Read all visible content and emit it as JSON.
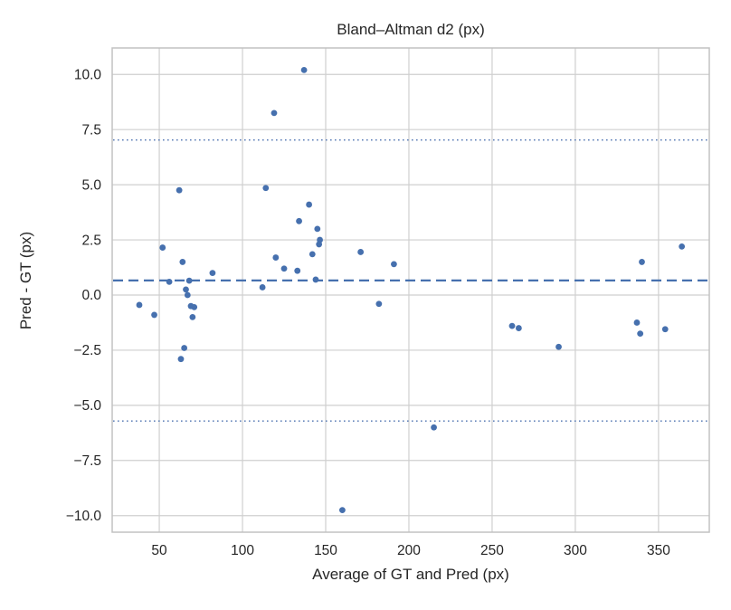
{
  "chart_data": {
    "type": "scatter",
    "title": "Bland–Altman d2 (px)",
    "xlabel": "Average of GT and Pred (px)",
    "ylabel": "Pred - GT (px)",
    "xlim": [
      21.7,
      380.5
    ],
    "ylim": [
      -10.75,
      11.2
    ],
    "grid": true,
    "legend": false,
    "x_ticks": [
      50,
      100,
      150,
      200,
      250,
      300,
      350
    ],
    "x_tick_labels": [
      "50",
      "100",
      "150",
      "200",
      "250",
      "300",
      "350"
    ],
    "y_ticks": [
      10.0,
      7.5,
      5.0,
      2.5,
      0.0,
      -2.5,
      -5.0,
      -7.5,
      -10.0
    ],
    "y_tick_labels": [
      "10.0",
      "7.5",
      "5.0",
      "2.5",
      "0.0",
      "−2.5",
      "−5.0",
      "−7.5",
      "−10.0"
    ],
    "reference_lines": [
      {
        "name": "mean-diff-line",
        "value": 0.66,
        "style": "dashed"
      },
      {
        "name": "upper-loa-line",
        "value": 7.03,
        "style": "dotted"
      },
      {
        "name": "lower-loa-line",
        "value": -5.71,
        "style": "dotted"
      }
    ],
    "points": [
      [
        38,
        -0.45
      ],
      [
        47,
        -0.9
      ],
      [
        52,
        2.15
      ],
      [
        56,
        0.6
      ],
      [
        62,
        4.75
      ],
      [
        63,
        -2.9
      ],
      [
        64,
        1.5
      ],
      [
        65,
        -2.4
      ],
      [
        66,
        0.25
      ],
      [
        67,
        0.0
      ],
      [
        68,
        0.65
      ],
      [
        69,
        -0.5
      ],
      [
        71,
        -0.55
      ],
      [
        70,
        -1.0
      ],
      [
        82,
        1.0
      ],
      [
        112,
        0.35
      ],
      [
        114,
        4.85
      ],
      [
        119,
        8.25
      ],
      [
        120,
        1.7
      ],
      [
        125,
        1.2
      ],
      [
        133,
        1.1
      ],
      [
        134,
        3.35
      ],
      [
        137,
        10.2
      ],
      [
        140,
        4.1
      ],
      [
        142,
        1.85
      ],
      [
        144,
        0.7
      ],
      [
        145,
        3.0
      ],
      [
        146,
        2.3
      ],
      [
        146.5,
        2.5
      ],
      [
        160,
        -9.75
      ],
      [
        171,
        1.95
      ],
      [
        182,
        -0.4
      ],
      [
        191,
        1.4
      ],
      [
        215,
        -6.0
      ],
      [
        262,
        -1.4
      ],
      [
        266,
        -1.5
      ],
      [
        290,
        -2.35
      ],
      [
        337,
        -1.25
      ],
      [
        339,
        -1.75
      ],
      [
        340,
        1.5
      ],
      [
        354,
        -1.55
      ],
      [
        364,
        2.2
      ]
    ],
    "colors": {
      "marker": "#4670ae",
      "mean_line": "#4670ae",
      "loa_line": "#4c72b0",
      "grid": "#cfcfcf",
      "spine": "#c2c2c2",
      "text": "#262626",
      "background": "#ffffff"
    }
  }
}
